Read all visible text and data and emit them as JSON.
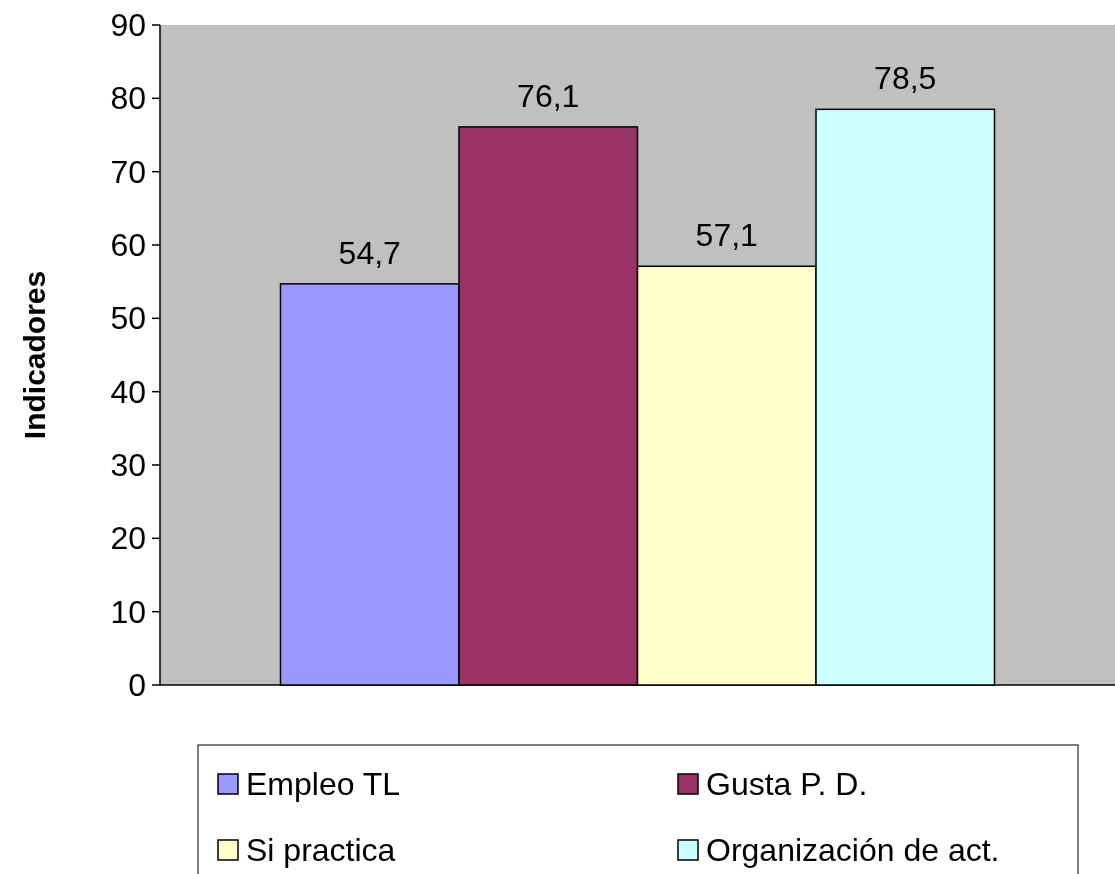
{
  "chart_data": {
    "type": "bar",
    "ylabel": "Indicadores",
    "categories": [
      null
    ],
    "series": [
      {
        "name": "Empleo TL",
        "color": "#9999ff",
        "values": [
          54.7
        ],
        "value_labels": [
          "54,7"
        ]
      },
      {
        "name": "Gusta P. D.",
        "color": "#993366",
        "values": [
          76.1
        ],
        "value_labels": [
          "76,1"
        ]
      },
      {
        "name": "Si practica",
        "color": "#ffffcc",
        "values": [
          57.1
        ],
        "value_labels": [
          "57,1"
        ]
      },
      {
        "name": "Organización de act.",
        "color": "#ccffff",
        "values": [
          78.5
        ],
        "value_labels": [
          "78,5"
        ]
      }
    ],
    "ylim": [
      0,
      90
    ],
    "yticks": [
      0,
      10,
      20,
      30,
      40,
      50,
      60,
      70,
      80,
      90
    ],
    "legend": "bottom"
  }
}
